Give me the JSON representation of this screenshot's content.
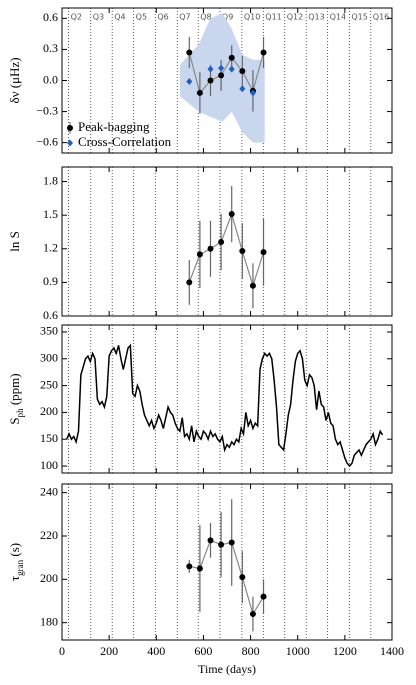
{
  "chart_data": [
    {
      "type": "errorbar",
      "ylabel": "δν (μHz)",
      "xlim": [
        0,
        1400
      ],
      "xticks": [
        0,
        200,
        400,
        600,
        800,
        1000,
        1200,
        1400
      ],
      "ylim": [
        -0.7,
        0.7
      ],
      "yticks": [
        0.6,
        0.3,
        {
          "value": 0,
          "label": "0.0"
        },
        {
          "value": -0.3,
          "label": "−0.3"
        },
        {
          "value": -0.6,
          "label": "−0.6"
        }
      ],
      "quarters": {
        "labels": [
          "Q2",
          "Q3",
          "Q4",
          "Q5",
          "Q6",
          "Q7",
          "Q8",
          "Q9",
          "Q10",
          "Q11",
          "Q12",
          "Q13",
          "Q14",
          "Q15",
          "Q16"
        ],
        "boundaries": [
          28,
          122,
          213,
          304,
          396,
          489,
          578,
          670,
          763,
          854,
          945,
          1036,
          1127,
          1219,
          1310
        ]
      },
      "band": {
        "color": "#c9d7ee",
        "x": [
          500,
          580,
          630,
          680,
          720,
          765,
          810,
          860
        ],
        "upper": [
          0.15,
          0.35,
          0.6,
          0.65,
          0.5,
          0.25,
          0.2,
          0.2
        ],
        "lower": [
          -0.15,
          -0.3,
          -0.35,
          -0.4,
          -0.3,
          -0.5,
          -0.6,
          -0.6
        ]
      },
      "legend": "lower left",
      "series": [
        {
          "name": "Peak-bagging",
          "color": "#000000",
          "marker": "circle",
          "connect": true,
          "x": [
            540,
            585,
            630,
            675,
            720,
            765,
            810,
            855
          ],
          "values": [
            0.27,
            -0.12,
            0.0,
            0.05,
            0.22,
            0.09,
            -0.1,
            0.27
          ],
          "errors": [
            0.15,
            0.2,
            0.15,
            0.15,
            0.12,
            0.15,
            0.2,
            0.15
          ]
        },
        {
          "name": "Cross-Correlation",
          "color": "#1f5fbf",
          "marker": "diamond",
          "connect": false,
          "x": [
            540,
            630,
            675,
            720,
            765,
            810
          ],
          "values": [
            -0.01,
            0.11,
            0.12,
            0.11,
            -0.08,
            -0.12
          ]
        }
      ]
    },
    {
      "type": "errorbar",
      "ylabel": "ln S",
      "xlim": [
        0,
        1400
      ],
      "xticks": [
        0,
        200,
        400,
        600,
        800,
        1000,
        1200,
        1400
      ],
      "ylim": [
        0.6,
        1.93
      ],
      "yticks": [
        0.6,
        0.9,
        1.2,
        1.5,
        1.8
      ],
      "series": [
        {
          "color": "#000000",
          "marker": "circle",
          "connect": true,
          "x": [
            540,
            585,
            630,
            675,
            720,
            765,
            810,
            855
          ],
          "values": [
            0.9,
            1.15,
            1.2,
            1.26,
            1.51,
            1.18,
            0.87,
            1.17
          ],
          "errors": [
            0.2,
            0.3,
            0.25,
            0.25,
            0.25,
            0.25,
            0.2,
            0.3
          ]
        }
      ]
    },
    {
      "type": "line",
      "ylabel": [
        "S",
        "ph",
        " (ppm)"
      ],
      "xlim": [
        0,
        1400
      ],
      "xticks": [
        0,
        200,
        400,
        600,
        800,
        1000,
        1200,
        1400
      ],
      "ylim": [
        87,
        363
      ],
      "yticks": [
        100,
        150,
        200,
        250,
        300,
        350
      ],
      "color": "#000000",
      "x": [
        20,
        30,
        40,
        50,
        60,
        70,
        80,
        90,
        100,
        110,
        120,
        130,
        140,
        150,
        160,
        170,
        180,
        190,
        200,
        210,
        220,
        230,
        240,
        250,
        260,
        270,
        280,
        290,
        300,
        310,
        320,
        330,
        340,
        350,
        360,
        370,
        380,
        390,
        400,
        410,
        420,
        430,
        440,
        450,
        460,
        470,
        480,
        490,
        500,
        510,
        520,
        530,
        540,
        550,
        560,
        570,
        580,
        590,
        600,
        610,
        620,
        630,
        640,
        650,
        660,
        670,
        680,
        690,
        700,
        710,
        720,
        730,
        740,
        750,
        760,
        770,
        780,
        790,
        800,
        810,
        820,
        830,
        840,
        850,
        860,
        870,
        880,
        890,
        900,
        910,
        920,
        930,
        940,
        950,
        960,
        970,
        980,
        990,
        1000,
        1010,
        1020,
        1030,
        1040,
        1050,
        1060,
        1070,
        1080,
        1090,
        1100,
        1110,
        1120,
        1130,
        1140,
        1150,
        1160,
        1170,
        1180,
        1190,
        1200,
        1210,
        1220,
        1230,
        1240,
        1250,
        1260,
        1270,
        1280,
        1290,
        1300,
        1310,
        1320,
        1330,
        1340,
        1350,
        1360
      ],
      "values": [
        150,
        160,
        150,
        155,
        145,
        165,
        270,
        285,
        300,
        305,
        295,
        310,
        300,
        225,
        215,
        220,
        210,
        230,
        305,
        315,
        320,
        310,
        325,
        300,
        280,
        300,
        320,
        325,
        235,
        230,
        250,
        240,
        215,
        195,
        185,
        175,
        185,
        170,
        180,
        195,
        185,
        170,
        190,
        210,
        200,
        195,
        180,
        170,
        165,
        190,
        155,
        160,
        150,
        175,
        145,
        165,
        155,
        150,
        165,
        160,
        150,
        165,
        155,
        160,
        150,
        145,
        155,
        130,
        140,
        135,
        145,
        140,
        150,
        145,
        170,
        160,
        200,
        175,
        185,
        170,
        180,
        175,
        280,
        300,
        310,
        305,
        310,
        300,
        260,
        210,
        140,
        135,
        130,
        160,
        195,
        215,
        260,
        295,
        310,
        315,
        300,
        260,
        250,
        270,
        265,
        250,
        205,
        240,
        215,
        210,
        185,
        200,
        180,
        175,
        150,
        140,
        145,
        130,
        115,
        105,
        100,
        105,
        120,
        125,
        130,
        120,
        130,
        140,
        145,
        150,
        160,
        140,
        150,
        165,
        158
      ]
    },
    {
      "type": "errorbar",
      "ylabel": [
        "τ",
        "gran",
        " (s)"
      ],
      "xlabel": "Time (days)",
      "xlim": [
        0,
        1400
      ],
      "xticks": [
        0,
        200,
        400,
        600,
        800,
        1000,
        1200,
        1400
      ],
      "ylim": [
        172,
        244
      ],
      "yticks": [
        180,
        200,
        220,
        240
      ],
      "series": [
        {
          "color": "#000000",
          "marker": "circle",
          "connect": true,
          "x": [
            540,
            585,
            630,
            675,
            720,
            765,
            810,
            855
          ],
          "values": [
            206,
            205,
            218,
            216,
            217,
            201,
            184,
            192
          ],
          "errors": [
            3,
            20,
            8,
            15,
            20,
            12,
            8,
            8
          ]
        }
      ]
    }
  ]
}
